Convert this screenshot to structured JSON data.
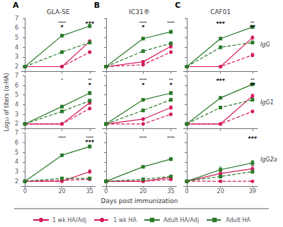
{
  "chart_data": {
    "type": "line",
    "xlabel": "Days post immunization",
    "ylabel": "Log₁₀ of titers (α-HA)",
    "ylim": [
      1.5,
      7.0
    ],
    "yticks": [
      2,
      3,
      4,
      5,
      6,
      7
    ],
    "grid": false,
    "legend": "bottom",
    "series": [
      {
        "name": "1 wk HA/Adj",
        "color": "#d4175a",
        "marker": "circle",
        "line_style": "solid"
      },
      {
        "name": "1 wk HA",
        "color": "#d4175a",
        "marker": "circle",
        "line_style": "dashed"
      },
      {
        "name": "Adult HA/Adj",
        "color": "#2a7a2a",
        "marker": "square",
        "line_style": "solid"
      },
      {
        "name": "Adult HA",
        "color": "#2a7a2a",
        "marker": "square",
        "line_style": "dashed"
      }
    ],
    "panels": [
      {
        "title": "GLA-SE",
        "label": "A",
        "xlim": [
          -2,
          38
        ],
        "xticks": [
          0,
          20,
          35
        ],
        "x": [
          0,
          20,
          35
        ],
        "tick_labels": "y",
        "series": [
          {
            "name": "1 wk HA/Adj",
            "values": [
              2.0,
              2.0,
              4.6
            ],
            "errors": [
              0.05,
              0.08,
              0.18
            ]
          },
          {
            "name": "1 wk HA",
            "values": [
              2.0,
              2.0,
              3.5
            ],
            "errors": [
              0.05,
              0.08,
              0.12
            ]
          },
          {
            "name": "Adult HA/Adj",
            "values": [
              2.0,
              5.2,
              6.2
            ],
            "errors": [
              0.05,
              0.12,
              0.15
            ]
          },
          {
            "name": "Adult HA",
            "values": [
              2.0,
              3.5,
              4.5
            ],
            "errors": [
              0.05,
              0.12,
              0.15
            ]
          }
        ],
        "annotations": [
          {
            "x": 20,
            "y": 6.75,
            "text": "****"
          },
          {
            "x": 20,
            "y": 6.35,
            "text": "#"
          },
          {
            "x": 35,
            "y": 6.75,
            "text": "###"
          }
        ]
      },
      {
        "title": "IC31®",
        "label": "B",
        "xlim": [
          -2,
          38
        ],
        "xticks": [
          0,
          20,
          35
        ],
        "x": [
          0,
          20,
          35
        ],
        "tick_labels": false,
        "series": [
          {
            "name": "1 wk HA/Adj",
            "values": [
              2.0,
              2.5,
              4.1
            ],
            "errors": [
              0.05,
              0.12,
              0.18
            ]
          },
          {
            "name": "1 wk HA",
            "values": [
              2.0,
              2.2,
              3.5
            ],
            "errors": [
              0.05,
              0.08,
              0.12
            ]
          },
          {
            "name": "Adult HA/Adj",
            "values": [
              2.0,
              4.9,
              5.6
            ],
            "errors": [
              0.05,
              0.12,
              0.15
            ]
          },
          {
            "name": "Adult HA",
            "values": [
              2.0,
              3.6,
              4.4
            ],
            "errors": [
              0.05,
              0.12,
              0.15
            ]
          }
        ],
        "annotations": [
          {
            "x": 20,
            "y": 6.75,
            "text": "****"
          },
          {
            "x": 20,
            "y": 6.35,
            "text": "#"
          },
          {
            "x": 35,
            "y": 6.75,
            "text": "****"
          }
        ]
      },
      {
        "title": "CAF01",
        "label": "C",
        "row_label": "IgG",
        "xlim": [
          -2,
          42
        ],
        "xticks": [
          0,
          20,
          39
        ],
        "x": [
          0,
          20,
          39
        ],
        "tick_labels": false,
        "series": [
          {
            "name": "1 wk HA/Adj",
            "values": [
              2.0,
              2.0,
              5.0
            ],
            "errors": [
              0.05,
              0.08,
              0.18
            ]
          },
          {
            "name": "1 wk HA",
            "values": [
              2.0,
              2.0,
              3.2
            ],
            "errors": [
              0.05,
              0.08,
              0.18
            ]
          },
          {
            "name": "Adult HA/Adj",
            "values": [
              2.0,
              4.9,
              6.1
            ],
            "errors": [
              0.05,
              0.12,
              0.15
            ]
          },
          {
            "name": "Adult HA",
            "values": [
              2.0,
              4.0,
              4.5
            ],
            "errors": [
              0.05,
              0.12,
              0.15
            ]
          }
        ],
        "annotations": [
          {
            "x": 20,
            "y": 6.75,
            "text": "###"
          },
          {
            "x": 39,
            "y": 6.75,
            "text": "**"
          },
          {
            "x": 39,
            "y": 6.35,
            "text": "##"
          }
        ]
      },
      {
        "xlim": [
          -2,
          38
        ],
        "xticks": [
          0,
          20,
          35
        ],
        "x": [
          0,
          20,
          35
        ],
        "tick_labels": "y",
        "series": [
          {
            "name": "1 wk HA/Adj",
            "values": [
              2.0,
              2.0,
              4.2
            ],
            "errors": [
              0.05,
              0.08,
              0.18
            ]
          },
          {
            "name": "1 wk HA",
            "values": [
              2.0,
              2.0,
              3.6
            ],
            "errors": [
              0.05,
              0.08,
              0.12
            ]
          },
          {
            "name": "Adult HA/Adj",
            "values": [
              2.0,
              3.8,
              5.2
            ],
            "errors": [
              0.05,
              0.12,
              0.15
            ]
          },
          {
            "name": "Adult HA",
            "values": [
              2.0,
              3.3,
              4.4
            ],
            "errors": [
              0.05,
              0.12,
              0.15
            ]
          }
        ],
        "annotations": [
          {
            "x": 20,
            "y": 6.75,
            "text": "*"
          },
          {
            "x": 35,
            "y": 6.75,
            "text": "**"
          },
          {
            "x": 35,
            "y": 6.35,
            "text": "#"
          }
        ]
      },
      {
        "xlim": [
          -2,
          38
        ],
        "xticks": [
          0,
          20,
          35
        ],
        "x": [
          0,
          20,
          35
        ],
        "tick_labels": false,
        "series": [
          {
            "name": "1 wk HA/Adj",
            "values": [
              2.0,
              2.5,
              3.7
            ],
            "errors": [
              0.05,
              0.12,
              0.18
            ]
          },
          {
            "name": "1 wk HA",
            "values": [
              2.0,
              2.0,
              3.0
            ],
            "errors": [
              0.05,
              0.08,
              0.12
            ]
          },
          {
            "name": "Adult HA/Adj",
            "values": [
              2.0,
              4.5,
              5.2
            ],
            "errors": [
              0.05,
              0.12,
              0.15
            ]
          },
          {
            "name": "Adult HA",
            "values": [
              2.0,
              3.4,
              4.5
            ],
            "errors": [
              0.05,
              0.12,
              0.15
            ]
          }
        ],
        "annotations": [
          {
            "x": 20,
            "y": 6.75,
            "text": "****"
          },
          {
            "x": 20,
            "y": 6.35,
            "text": "#"
          },
          {
            "x": 35,
            "y": 6.75,
            "text": "**"
          },
          {
            "x": 35,
            "y": 6.35,
            "text": "#"
          }
        ]
      },
      {
        "row_label": "IgG1",
        "xlim": [
          -2,
          42
        ],
        "xticks": [
          0,
          20,
          39
        ],
        "x": [
          0,
          20,
          39
        ],
        "tick_labels": false,
        "series": [
          {
            "name": "1 wk HA/Adj",
            "values": [
              2.0,
              2.0,
              4.9
            ],
            "errors": [
              0.05,
              0.08,
              0.18
            ]
          },
          {
            "name": "1 wk HA",
            "values": [
              2.0,
              2.0,
              3.3
            ],
            "errors": [
              0.05,
              0.08,
              0.12
            ]
          },
          {
            "name": "Adult HA/Adj",
            "values": [
              2.0,
              4.7,
              6.1
            ],
            "errors": [
              0.05,
              0.12,
              0.15
            ]
          },
          {
            "name": "Adult HA",
            "values": [
              2.0,
              3.7,
              4.5
            ],
            "errors": [
              0.05,
              0.12,
              0.15
            ]
          }
        ],
        "annotations": [
          {
            "x": 20,
            "y": 6.75,
            "text": "###"
          },
          {
            "x": 39,
            "y": 6.75,
            "text": "**"
          },
          {
            "x": 39,
            "y": 6.35,
            "text": "##"
          }
        ]
      },
      {
        "xlim": [
          -2,
          38
        ],
        "xticks": [
          0,
          20,
          35
        ],
        "x": [
          0,
          20,
          35
        ],
        "series": [
          {
            "name": "1 wk HA/Adj",
            "values": [
              2.0,
              2.0,
              3.0
            ],
            "errors": [
              0.05,
              0.08,
              0.18
            ]
          },
          {
            "name": "1 wk HA",
            "values": [
              2.0,
              2.1,
              2.2
            ],
            "errors": [
              0.05,
              0.08,
              0.08
            ]
          },
          {
            "name": "Adult HA/Adj",
            "values": [
              2.0,
              4.7,
              5.6
            ],
            "errors": [
              0.05,
              0.12,
              0.15
            ]
          },
          {
            "name": "Adult HA",
            "values": [
              2.0,
              2.3,
              2.3
            ],
            "errors": [
              0.05,
              0.08,
              0.08
            ]
          }
        ],
        "annotations": [
          {
            "x": 20,
            "y": 6.75,
            "text": "****"
          },
          {
            "x": 35,
            "y": 6.75,
            "text": "****"
          },
          {
            "x": 35,
            "y": 6.35,
            "text": "###"
          }
        ]
      },
      {
        "xlim": [
          -2,
          38
        ],
        "xticks": [
          0,
          20,
          35
        ],
        "x": [
          0,
          20,
          35
        ],
        "tick_labels": "x",
        "series": [
          {
            "name": "1 wk HA/Adj",
            "values": [
              2.0,
              2.0,
              2.4
            ],
            "errors": [
              0.05,
              0.08,
              0.12
            ]
          },
          {
            "name": "1 wk HA",
            "values": [
              2.0,
              2.0,
              2.2
            ],
            "errors": [
              0.05,
              0.08,
              0.08
            ]
          },
          {
            "name": "Adult HA/Adj",
            "values": [
              2.0,
              3.5,
              4.3
            ],
            "errors": [
              0.05,
              0.12,
              0.15
            ]
          },
          {
            "name": "Adult HA",
            "values": [
              2.0,
              2.2,
              2.5
            ],
            "errors": [
              0.05,
              0.08,
              0.08
            ]
          }
        ],
        "annotations": [
          {
            "x": 20,
            "y": 6.75,
            "text": "****"
          },
          {
            "x": 35,
            "y": 6.75,
            "text": "****"
          }
        ]
      },
      {
        "row_label": "IgG2a",
        "xlim": [
          -2,
          42
        ],
        "xticks": [
          0,
          20,
          39
        ],
        "x": [
          0,
          20,
          39
        ],
        "tick_labels": "x",
        "series": [
          {
            "name": "1 wk HA/Adj",
            "values": [
              2.0,
              2.8,
              3.3
            ],
            "errors": [
              0.05,
              0.2,
              0.25
            ]
          },
          {
            "name": "1 wk HA",
            "values": [
              2.0,
              2.0,
              2.0
            ],
            "errors": [
              0.05,
              0.08,
              0.08
            ]
          },
          {
            "name": "Adult HA/Adj",
            "values": [
              2.0,
              3.2,
              3.9
            ],
            "errors": [
              0.05,
              0.28,
              0.25
            ]
          },
          {
            "name": "Adult HA",
            "values": [
              2.0,
              2.5,
              3.0
            ],
            "errors": [
              0.05,
              0.18,
              0.18
            ]
          }
        ],
        "annotations": [
          {
            "x": 39,
            "y": 6.75,
            "text": "###"
          }
        ]
      }
    ]
  }
}
